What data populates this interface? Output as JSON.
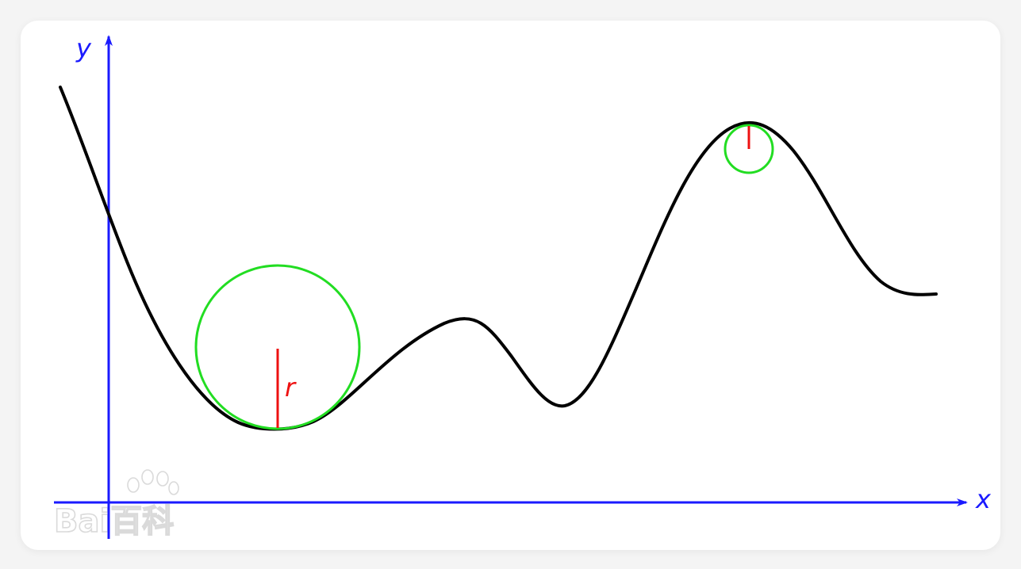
{
  "axes": {
    "x_label": "x",
    "y_label": "y",
    "color": "#1a1aff"
  },
  "curve": {
    "color": "#000000"
  },
  "circles": {
    "color": "#22dd22",
    "radius_color": "#ee1111",
    "radius_label": "r"
  },
  "watermark": {
    "text": "Bai百科"
  }
}
